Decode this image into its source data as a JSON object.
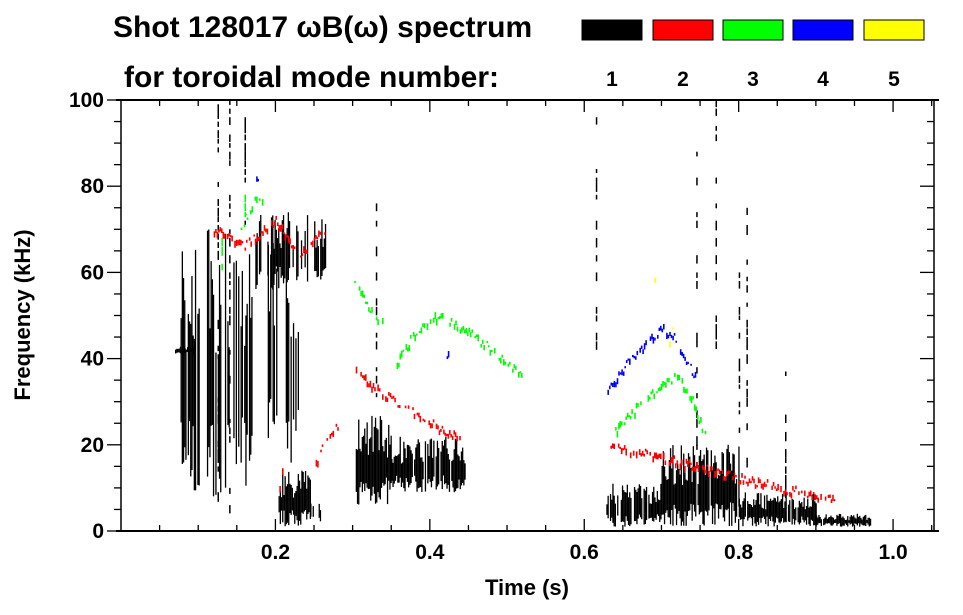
{
  "chart_data": {
    "type": "heatmap",
    "title_line1": "Shot 128017 ωB(ω) spectrum",
    "title_line2": "for toroidal mode number:",
    "xlabel": "Time (s)",
    "ylabel": "Frequency (kHz)",
    "xlim": [
      0.0,
      1.053
    ],
    "ylim": [
      0,
      100
    ],
    "xticks": [
      "0.2",
      "0.4",
      "0.6",
      "0.8",
      "1.0"
    ],
    "xtick_values": [
      0.2,
      0.4,
      0.6,
      0.8,
      1.0
    ],
    "yticks": [
      "0",
      "20",
      "40",
      "60",
      "80",
      "100"
    ],
    "ytick_values": [
      0,
      20,
      40,
      60,
      80,
      100
    ],
    "legend": [
      {
        "label": "1",
        "color": "#000000"
      },
      {
        "label": "2",
        "color": "#ff0000"
      },
      {
        "label": "3",
        "color": "#00ff00"
      },
      {
        "label": "4",
        "color": "#0000ff"
      },
      {
        "label": "5",
        "color": "#ffff00"
      }
    ],
    "series": [
      {
        "mode": "1",
        "color": "#000000",
        "blobs": [
          [
            0.07,
            0.096,
            41,
            43,
            1
          ],
          [
            0.077,
            0.17,
            8,
            70,
            0.55
          ],
          [
            0.174,
            0.265,
            56,
            74,
            0.5
          ],
          [
            0.19,
            0.23,
            15,
            70,
            0.3
          ],
          [
            0.204,
            0.245,
            1,
            14,
            0.95
          ],
          [
            0.245,
            0.26,
            2,
            7,
            0.6
          ],
          [
            0.304,
            0.35,
            6,
            28,
            0.9
          ],
          [
            0.35,
            0.446,
            9,
            22,
            0.75
          ],
          [
            0.627,
            0.7,
            1,
            11,
            0.7
          ],
          [
            0.7,
            0.8,
            1,
            20,
            0.8
          ],
          [
            0.8,
            0.9,
            1,
            9,
            0.75
          ],
          [
            0.9,
            0.97,
            1,
            4,
            0.8
          ]
        ],
        "lines": [
          [
            0.14,
            0,
            100
          ],
          [
            0.125,
            5,
            99
          ],
          [
            0.33,
            30,
            80
          ],
          [
            0.8,
            20,
            60
          ],
          [
            0.745,
            10,
            90
          ],
          [
            0.86,
            5,
            40
          ],
          [
            0.81,
            15,
            80
          ],
          [
            0.77,
            40,
            100
          ],
          [
            0.615,
            40,
            100
          ],
          [
            0.16,
            70,
            100
          ]
        ],
        "tracks": []
      },
      {
        "mode": "2",
        "color": "#ff0000",
        "blobs": [],
        "lines": [],
        "tracks": [
          [
            [
              0.12,
              70
            ],
            [
              0.16,
              66
            ],
            [
              0.2,
              72
            ],
            [
              0.23,
              64
            ],
            [
              0.265,
              70
            ]
          ],
          [
            [
              0.252,
              16
            ],
            [
              0.268,
              22
            ],
            [
              0.282,
              25
            ]
          ],
          [
            [
              0.304,
              37
            ],
            [
              0.33,
              33
            ],
            [
              0.36,
              29
            ],
            [
              0.4,
              25
            ],
            [
              0.44,
              21
            ]
          ],
          [
            [
              0.63,
              20
            ],
            [
              0.7,
              17
            ],
            [
              0.78,
              13
            ],
            [
              0.85,
              10
            ],
            [
              0.925,
              7
            ]
          ],
          [
            [
              0.205,
              10
            ],
            [
              0.212,
              17
            ]
          ]
        ]
      },
      {
        "mode": "3",
        "color": "#00ff00",
        "blobs": [],
        "lines": [
          [
            0.16,
            72,
            82
          ],
          [
            0.13,
            60,
            68
          ]
        ],
        "tracks": [
          [
            [
              0.355,
              38
            ],
            [
              0.38,
              46
            ],
            [
              0.41,
              50
            ],
            [
              0.45,
              46
            ],
            [
              0.52,
              36
            ]
          ],
          [
            [
              0.3,
              58
            ],
            [
              0.32,
              52
            ],
            [
              0.34,
              48
            ]
          ],
          [
            [
              0.64,
              23
            ],
            [
              0.68,
              31
            ],
            [
              0.72,
              36
            ],
            [
              0.74,
              30
            ],
            [
              0.76,
              20
            ]
          ],
          [
            [
              0.155,
              70
            ],
            [
              0.175,
              78
            ],
            [
              0.19,
              74
            ]
          ]
        ]
      },
      {
        "mode": "4",
        "color": "#0000ff",
        "blobs": [],
        "lines": [],
        "tracks": [
          [
            [
              0.63,
              32
            ],
            [
              0.66,
              40
            ],
            [
              0.7,
              47
            ],
            [
              0.72,
              44
            ],
            [
              0.745,
              35
            ]
          ],
          [
            [
              0.175,
              81
            ],
            [
              0.18,
              84
            ]
          ],
          [
            [
              0.42,
              39
            ],
            [
              0.425,
              41
            ]
          ]
        ]
      },
      {
        "mode": "5",
        "color": "#ffff00",
        "blobs": [],
        "lines": [],
        "tracks": [
          [
            [
              0.71,
              44
            ],
            [
              0.715,
              47
            ]
          ],
          [
            [
              0.69,
              57
            ],
            [
              0.692,
              58
            ]
          ]
        ]
      }
    ]
  }
}
